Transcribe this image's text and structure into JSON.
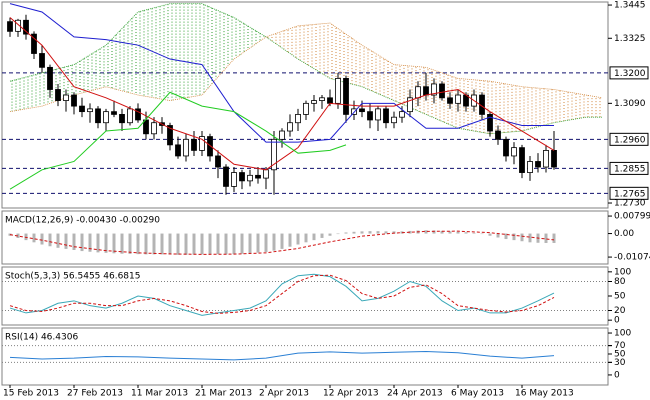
{
  "chart_data": [
    {
      "type": "candlestick",
      "categories": [
        "15 Feb 2013",
        null,
        null,
        null,
        null,
        null,
        null,
        null,
        "27 Feb 2013",
        null,
        null,
        null,
        null,
        null,
        null,
        null,
        "11 Mar 2013",
        null,
        null,
        null,
        null,
        null,
        null,
        null,
        "21 Mar 2013",
        null,
        null,
        null,
        null,
        null,
        null,
        null,
        "2 Apr 2013",
        null,
        null,
        null,
        null,
        null,
        null,
        null,
        "12 Apr 2013",
        null,
        null,
        null,
        null,
        null,
        null,
        null,
        "24 Apr 2013",
        null,
        null,
        null,
        null,
        null,
        null,
        null,
        "6 May 2013",
        null,
        null,
        null,
        null,
        null,
        null,
        null,
        "16 May 2013",
        null,
        null,
        null,
        null
      ],
      "open": [
        1.3385,
        1.335,
        1.339,
        1.334,
        1.327,
        1.322,
        1.314,
        1.31,
        1.312,
        1.308,
        1.306,
        1.307,
        1.302,
        1.306,
        1.305,
        1.302,
        1.307,
        1.303,
        1.298,
        1.302,
        1.301,
        1.294,
        1.29,
        1.296,
        1.292,
        1.297,
        1.29,
        1.286,
        1.279,
        1.284,
        1.281,
        1.283,
        1.282,
        1.285,
        1.296,
        1.299,
        1.302,
        1.305,
        1.309,
        1.31,
        1.311,
        1.309,
        1.318,
        1.305,
        1.307,
        1.306,
        1.303,
        1.307,
        1.302,
        1.304,
        1.306,
        1.311,
        1.315,
        1.312,
        1.316,
        1.311,
        1.309,
        1.312,
        1.308,
        1.312,
        1.305,
        1.299,
        1.296,
        1.29,
        1.293,
        1.284,
        1.288,
        1.286,
        1.292
      ],
      "high": [
        1.34,
        1.3395,
        1.341,
        1.335,
        1.33,
        1.323,
        1.316,
        1.314,
        1.313,
        1.311,
        1.309,
        1.308,
        1.307,
        1.31,
        1.307,
        1.308,
        1.309,
        1.306,
        1.304,
        1.304,
        1.302,
        1.297,
        1.298,
        1.299,
        1.299,
        1.298,
        1.292,
        1.287,
        1.286,
        1.285,
        1.285,
        1.286,
        1.286,
        1.299,
        1.3,
        1.305,
        1.307,
        1.31,
        1.312,
        1.312,
        1.314,
        1.32,
        1.319,
        1.31,
        1.31,
        1.309,
        1.308,
        1.308,
        1.306,
        1.308,
        1.314,
        1.317,
        1.32,
        1.318,
        1.317,
        1.313,
        1.314,
        1.313,
        1.314,
        1.313,
        1.306,
        1.301,
        1.297,
        1.295,
        1.294,
        1.29,
        1.291,
        1.294,
        1.299
      ],
      "low": [
        1.333,
        1.333,
        1.332,
        1.325,
        1.32,
        1.311,
        1.308,
        1.306,
        1.305,
        1.304,
        1.302,
        1.3,
        1.299,
        1.304,
        1.299,
        1.301,
        1.302,
        1.296,
        1.296,
        1.298,
        1.292,
        1.289,
        1.288,
        1.29,
        1.29,
        1.288,
        1.282,
        1.276,
        1.277,
        1.278,
        1.279,
        1.28,
        1.278,
        1.276,
        1.293,
        1.297,
        1.299,
        1.303,
        1.306,
        1.307,
        1.308,
        1.307,
        1.302,
        1.303,
        1.304,
        1.3,
        1.299,
        1.3,
        1.3,
        1.302,
        1.304,
        1.308,
        1.31,
        1.309,
        1.31,
        1.307,
        1.306,
        1.306,
        1.306,
        1.303,
        1.297,
        1.294,
        1.288,
        1.287,
        1.282,
        1.281,
        1.284,
        1.284,
        1.285
      ],
      "close": [
        1.335,
        1.339,
        1.334,
        1.327,
        1.322,
        1.314,
        1.31,
        1.312,
        1.308,
        1.306,
        1.307,
        1.302,
        1.306,
        1.305,
        1.302,
        1.307,
        1.303,
        1.298,
        1.302,
        1.301,
        1.294,
        1.29,
        1.296,
        1.292,
        1.297,
        1.29,
        1.286,
        1.279,
        1.284,
        1.281,
        1.283,
        1.282,
        1.285,
        1.296,
        1.299,
        1.302,
        1.305,
        1.309,
        1.31,
        1.311,
        1.309,
        1.318,
        1.305,
        1.307,
        1.306,
        1.303,
        1.307,
        1.302,
        1.304,
        1.306,
        1.311,
        1.315,
        1.312,
        1.316,
        1.311,
        1.309,
        1.312,
        1.308,
        1.312,
        1.305,
        1.299,
        1.296,
        1.29,
        1.293,
        1.284,
        1.288,
        1.286,
        1.292,
        1.286
      ],
      "up_color": "#ffffff",
      "down_color": "#000000",
      "cloud": {
        "x": [
          0,
          4,
          8,
          12,
          16,
          20,
          24,
          28,
          32,
          36,
          40,
          44,
          48,
          52,
          56,
          60,
          64,
          68,
          72,
          74
        ],
        "span_a": [
          1.317,
          1.32,
          1.323,
          1.33,
          1.342,
          1.345,
          1.345,
          1.34,
          1.333,
          1.325,
          1.318,
          1.315,
          1.31,
          1.305,
          1.3,
          1.298,
          1.299,
          1.302,
          1.304,
          1.304
        ],
        "span_b": [
          1.306,
          1.308,
          1.312,
          1.315,
          1.312,
          1.31,
          1.312,
          1.325,
          1.333,
          1.337,
          1.338,
          1.33,
          1.323,
          1.322,
          1.318,
          1.317,
          1.315,
          1.314,
          1.312,
          1.311
        ],
        "color_a": "#2e9e2e",
        "color_b": "#d2873c"
      },
      "lines": [
        {
          "color": "#1f1fd0",
          "x": [
            0,
            4,
            8,
            12,
            16,
            20,
            24,
            28,
            32,
            36,
            40,
            44,
            48,
            52,
            56,
            60,
            64,
            68
          ],
          "values": [
            1.345,
            1.342,
            1.333,
            1.332,
            1.33,
            1.325,
            1.323,
            1.306,
            1.295,
            1.295,
            1.296,
            1.309,
            1.309,
            1.3,
            1.3,
            1.304,
            1.301,
            1.301
          ]
        },
        {
          "color": "#d01010",
          "x": [
            0,
            4,
            8,
            12,
            16,
            20,
            24,
            28,
            32,
            36,
            40,
            44,
            48,
            52,
            56,
            60,
            64,
            68
          ],
          "values": [
            1.34,
            1.33,
            1.315,
            1.311,
            1.306,
            1.3,
            1.296,
            1.287,
            1.285,
            1.293,
            1.309,
            1.308,
            1.308,
            1.312,
            1.314,
            1.306,
            1.299,
            1.292
          ]
        },
        {
          "color": "#22cc22",
          "x": [
            0,
            4,
            8,
            12,
            16,
            20,
            24,
            28,
            32,
            36,
            40,
            42
          ],
          "values": [
            1.278,
            1.285,
            1.288,
            1.299,
            1.3,
            1.313,
            1.308,
            1.306,
            1.299,
            1.291,
            1.292,
            1.294
          ]
        }
      ],
      "levels": [
        {
          "value": 1.32,
          "label": "1.3200"
        },
        {
          "value": 1.296,
          "label": "1.2960"
        },
        1.2855,
        1.2765
      ],
      "level_color": "#10106e",
      "ylim": [
        1.2712,
        1.3456
      ],
      "yticks": [
        1.3445,
        1.3325,
        {
          "value": 1.309,
          "label": "1.3090"
        },
        {
          "value": 1.273,
          "label": "1.2730"
        }
      ]
    },
    {
      "type": "bar",
      "title": "MACD(12,26,9) -0.00430 -0.00290",
      "color": "#b4b4b4",
      "values": [
        -0.001,
        -0.002,
        -0.003,
        -0.004,
        -0.005,
        -0.0058,
        -0.0065,
        -0.007,
        -0.0075,
        -0.008,
        -0.0083,
        -0.0086,
        -0.0088,
        -0.009,
        -0.0092,
        -0.0093,
        -0.0094,
        -0.0095,
        -0.0095,
        -0.0095,
        -0.0096,
        -0.0097,
        -0.0097,
        -0.0096,
        -0.0095,
        -0.0094,
        -0.0094,
        -0.0095,
        -0.0094,
        -0.0092,
        -0.009,
        -0.0087,
        -0.0084,
        -0.0078,
        -0.007,
        -0.006,
        -0.005,
        -0.004,
        -0.003,
        -0.002,
        -0.001,
        0.0,
        0.0005,
        0.0008,
        0.001,
        0.0011,
        0.0011,
        0.001,
        0.001,
        0.001,
        0.0012,
        0.0014,
        0.0015,
        0.0014,
        0.0012,
        0.001,
        0.0008,
        0.0006,
        0.0003,
        0.0,
        -0.001,
        -0.0018,
        -0.0025,
        -0.003,
        -0.0035,
        -0.004,
        -0.0042,
        -0.0043,
        -0.0043
      ],
      "lines": [
        {
          "color": "#d01010",
          "dashed": true,
          "x": [
            0,
            4,
            8,
            12,
            16,
            20,
            24,
            28,
            32,
            36,
            40,
            44,
            48,
            52,
            56,
            60,
            64,
            68
          ],
          "values": [
            -0.0005,
            -0.003,
            -0.006,
            -0.0078,
            -0.0088,
            -0.0093,
            -0.0095,
            -0.0094,
            -0.0088,
            -0.0068,
            -0.0038,
            -0.0012,
            0.0002,
            0.001,
            0.0011,
            0.0004,
            -0.0012,
            -0.0029
          ]
        }
      ],
      "ylim": [
        -0.0139,
        0.0103
      ],
      "yticks": [
        0.00799,
        {
          "value": 0,
          "label": "0.00"
        },
        -0.01074
      ]
    },
    {
      "type": "line",
      "title": "Stoch(5,3,3) 56.5455 46.6815",
      "lines": [
        {
          "color": "#3aa8b8",
          "x": [
            0,
            2,
            4,
            6,
            8,
            10,
            12,
            14,
            16,
            18,
            20,
            22,
            24,
            26,
            28,
            30,
            32,
            34,
            36,
            38,
            40,
            42,
            44,
            46,
            48,
            50,
            52,
            54,
            56,
            58,
            60,
            62,
            64,
            66,
            68
          ],
          "values": [
            25,
            15,
            20,
            35,
            40,
            30,
            25,
            35,
            50,
            45,
            30,
            20,
            10,
            15,
            20,
            25,
            40,
            75,
            92,
            95,
            90,
            70,
            40,
            45,
            60,
            80,
            70,
            40,
            20,
            25,
            15,
            15,
            25,
            40,
            56
          ]
        },
        {
          "color": "#d01010",
          "dashed": true,
          "x": [
            0,
            2,
            4,
            6,
            8,
            10,
            12,
            14,
            16,
            18,
            20,
            22,
            24,
            26,
            28,
            30,
            32,
            34,
            36,
            38,
            40,
            42,
            44,
            46,
            48,
            50,
            52,
            54,
            56,
            58,
            60,
            62,
            64,
            66,
            68
          ],
          "values": [
            30,
            20,
            18,
            25,
            35,
            35,
            30,
            30,
            40,
            45,
            40,
            30,
            18,
            14,
            16,
            20,
            30,
            55,
            80,
            92,
            93,
            82,
            55,
            45,
            50,
            68,
            73,
            55,
            30,
            25,
            20,
            17,
            20,
            30,
            47
          ]
        }
      ],
      "levels": [
        80,
        20
      ],
      "level_color": "#808080",
      "ylim": [
        -10,
        110
      ],
      "yticks": [
        100,
        80,
        50,
        20,
        0
      ]
    },
    {
      "type": "line",
      "title": "RSI(14) 46.4306",
      "lines": [
        {
          "color": "#2a7fd4",
          "x": [
            0,
            4,
            8,
            12,
            16,
            20,
            24,
            28,
            32,
            36,
            40,
            44,
            48,
            52,
            56,
            60,
            64,
            68
          ],
          "values": [
            42,
            38,
            40,
            44,
            43,
            40,
            38,
            36,
            40,
            52,
            55,
            52,
            54,
            56,
            53,
            45,
            40,
            46
          ]
        }
      ],
      "levels": [
        70,
        30
      ],
      "level_color": "#808080",
      "ylim": [
        -24,
        112
      ],
      "yticks": [
        100,
        70,
        50,
        30,
        0
      ]
    }
  ]
}
